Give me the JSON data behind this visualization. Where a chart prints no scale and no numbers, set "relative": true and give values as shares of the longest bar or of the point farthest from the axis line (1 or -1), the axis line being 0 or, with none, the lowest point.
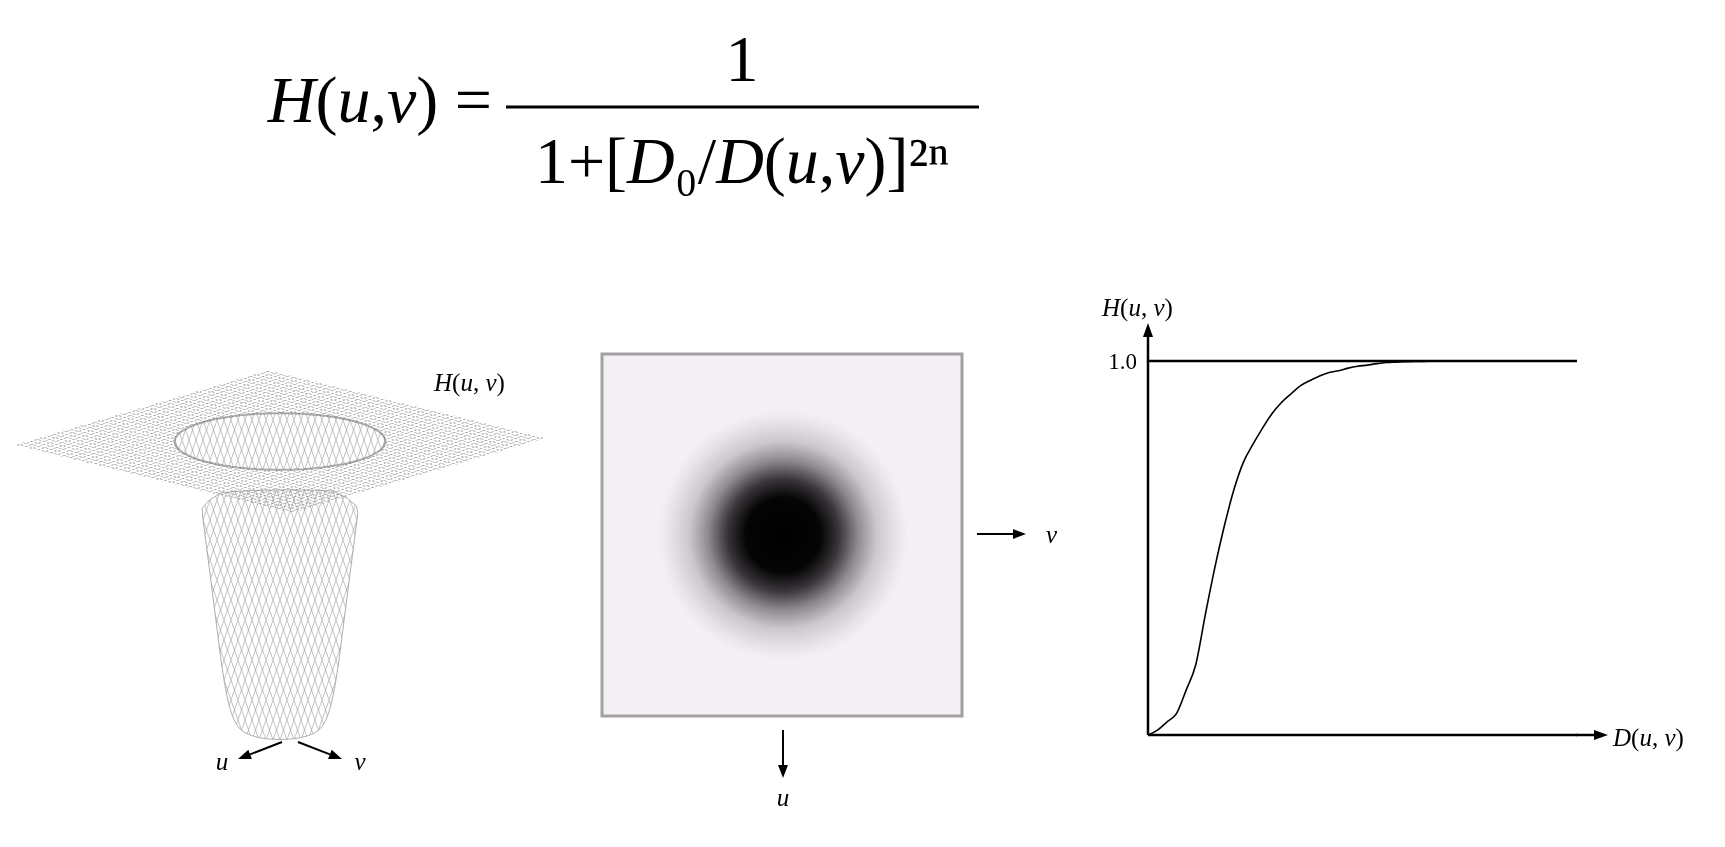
{
  "chart_data": [
    {
      "type": "other",
      "annotations": [
        "H(u,v) =",
        "1",
        "1+[D₀/D(u,v)]²ⁿ"
      ]
    },
    {
      "type": "other",
      "annotations": [
        "H(u, v)",
        "u",
        "v"
      ]
    },
    {
      "type": "other",
      "annotations": [
        "v",
        "u"
      ]
    },
    {
      "type": "line",
      "relative": true,
      "xlabel": "D(u, v)",
      "ylabel": "H(u, v)",
      "categories": [
        null,
        null,
        null,
        null,
        null,
        null,
        null,
        null,
        null,
        null,
        null,
        null,
        null,
        null,
        null,
        null,
        null,
        null,
        null,
        null,
        null,
        null,
        null,
        null,
        null,
        null,
        null,
        null,
        null,
        null,
        null,
        null,
        null,
        null,
        null,
        null,
        null,
        null,
        null,
        null,
        null,
        null,
        null,
        null,
        null,
        null
      ],
      "series": [
        {
          "color": "#000000",
          "values": [
            0,
            0.013,
            0.035,
            0.058,
            0.12,
            0.187,
            0.32,
            0.446,
            0.558,
            0.655,
            0.729,
            0.777,
            0.82,
            0.859,
            0.889,
            0.912,
            0.934,
            0.948,
            0.96,
            0.969,
            0.974,
            0.981,
            0.986,
            0.989,
            0.993,
            0.996,
            0.997,
            0.998,
            0.999,
            0.999,
            1,
            null,
            null,
            null,
            null,
            null,
            null,
            null,
            null,
            null,
            null,
            null,
            null,
            null,
            null,
            null
          ]
        }
      ],
      "ref_lines": [
        {
          "axis": "y",
          "value": 1,
          "label": "1.0",
          "color": "#000000"
        }
      ]
    }
  ]
}
